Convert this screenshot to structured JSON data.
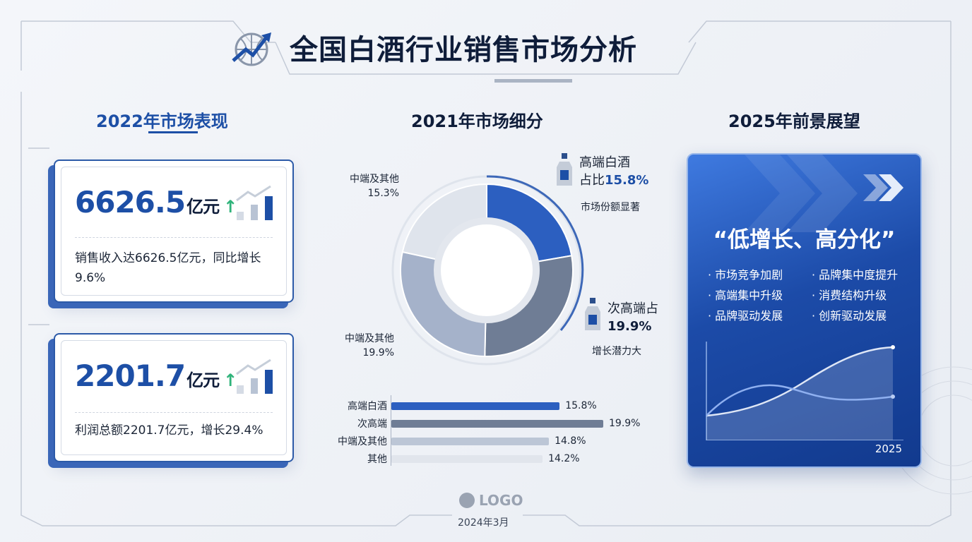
{
  "header": {
    "title": "全国白酒行业销售市场分析",
    "icon": "globe-trend-icon"
  },
  "left": {
    "heading": "2022年市场表现",
    "cards": [
      {
        "value": "6626.5",
        "unit": "亿元",
        "arrow": "↑",
        "desc": "销售收入达6626.5亿元，同比增长9.6%"
      },
      {
        "value": "2201.7",
        "unit": "亿元",
        "arrow": "↑",
        "desc": "利润总额2201.7亿元，增长29.4%"
      }
    ]
  },
  "middle": {
    "heading": "2021年市场细分",
    "callouts": {
      "high": {
        "line1": "高端白酒",
        "line2": "占比",
        "pct": "15.8%",
        "note": "市场份额显著"
      },
      "sub": {
        "line1": "次高端占",
        "pct": "19.9%",
        "note": "增长潜力大"
      },
      "mid_top": {
        "name": "中端及其他",
        "pct": "15.3%"
      },
      "mid_bottom": {
        "name": "中端及其他",
        "pct": "19.9%"
      }
    }
  },
  "chart_data": [
    {
      "type": "pie",
      "title": "2021年市场细分",
      "slices": [
        {
          "name": "高端白酒",
          "value": 15.8,
          "color": "#2c5fc0"
        },
        {
          "name": "次高端",
          "value": 19.9,
          "color": "#6f7d95"
        },
        {
          "name": "中端及其他",
          "value": 19.9,
          "color": "#a5b2ca"
        },
        {
          "name": "中端及其他",
          "value": 15.3,
          "color": "#dfe4ec"
        }
      ]
    },
    {
      "type": "bar",
      "orientation": "horizontal",
      "categories": [
        "高端白酒",
        "次高端",
        "中端及其他",
        "其他"
      ],
      "values": [
        15.8,
        19.9,
        14.8,
        14.2
      ],
      "labels": [
        "15.8%",
        "19.9%",
        "14.8%",
        "14.2%"
      ],
      "colors": [
        "#2c5fc0",
        "#6f7d95",
        "#bcc6d6",
        "#e1e5ec"
      ]
    }
  ],
  "right": {
    "heading": "2025年前景展望",
    "quote": "“低增长、高分化”",
    "bullets": [
      "市场竞争加剧",
      "品牌集中度提升",
      "高端集中升级",
      "消费结构升级",
      "品牌驱动发展",
      "创新驱动发展"
    ],
    "chart_year": "2025"
  },
  "footer": {
    "logo": "LOGO",
    "date": "2024年3月"
  }
}
